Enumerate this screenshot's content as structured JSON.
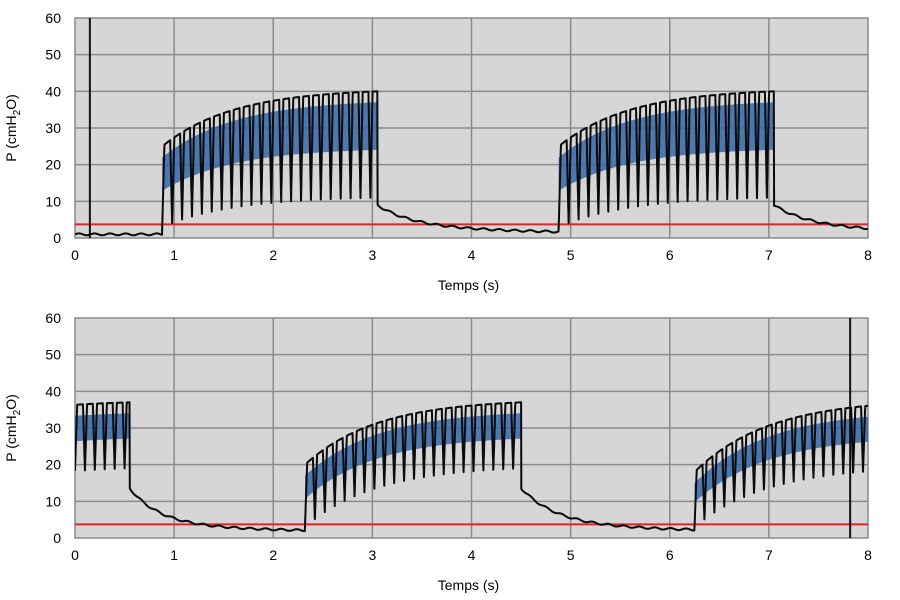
{
  "chart_data": [
    {
      "type": "line",
      "xlabel": "Temps (s)",
      "ylabel": {
        "prefix": "P (cmH",
        "sub": "2",
        "suffix": "O)"
      },
      "xlim": [
        0,
        8
      ],
      "ylim": [
        0,
        60
      ],
      "xticks": [
        "0",
        "1",
        "2",
        "3",
        "4",
        "5",
        "6",
        "7",
        "8"
      ],
      "yticks": [
        "0",
        "10",
        "20",
        "30",
        "40",
        "50",
        "60"
      ],
      "grid": true,
      "plot_background": "#d6d6d6",
      "baseline_level": 3.7,
      "baseline_color": "#e0222a",
      "trace_color": "#0b0b0b",
      "fill_color": "#3566a8",
      "event_markers": [
        0.15
      ],
      "bursts": [
        {
          "start": 0.88,
          "end": 3.05,
          "freq": 10,
          "top_start": 25,
          "top_end": 40,
          "bottom_start": 3,
          "bottom_end": 11,
          "decay_tau": 0.35
        },
        {
          "start": 4.88,
          "end": 7.05,
          "freq": 10,
          "top_start": 25,
          "top_end": 40,
          "bottom_start": 3,
          "bottom_end": 11,
          "decay_tau": 0.35
        }
      ],
      "rest_level": 1
    },
    {
      "type": "line",
      "xlabel": "Temps (s)",
      "ylabel": {
        "prefix": "P (cmH",
        "sub": "2",
        "suffix": "O)"
      },
      "xlim": [
        0,
        8
      ],
      "ylim": [
        0,
        60
      ],
      "xticks": [
        "0",
        "1",
        "2",
        "3",
        "4",
        "5",
        "6",
        "7",
        "8"
      ],
      "yticks": [
        "0",
        "10",
        "20",
        "30",
        "40",
        "50",
        "60"
      ],
      "grid": true,
      "plot_background": "#d6d6d6",
      "baseline_level": 3.7,
      "baseline_color": "#e0222a",
      "trace_color": "#0b0b0b",
      "fill_color": "#3566a8",
      "event_markers": [
        7.82
      ],
      "bursts": [
        {
          "start": -1.7,
          "end": 0.55,
          "freq": 10,
          "top_start": 25,
          "top_end": 37,
          "bottom_start": 6,
          "bottom_end": 19,
          "decay_tau": 0.3
        },
        {
          "start": 2.32,
          "end": 4.5,
          "freq": 10,
          "top_start": 20,
          "top_end": 37,
          "bottom_start": 3,
          "bottom_end": 19,
          "decay_tau": 0.35
        },
        {
          "start": 6.25,
          "end": 8.5,
          "freq": 10,
          "top_start": 18,
          "top_end": 37,
          "bottom_start": 3,
          "bottom_end": 19,
          "decay_tau": 0.35
        }
      ],
      "rest_level": 1.5
    }
  ]
}
